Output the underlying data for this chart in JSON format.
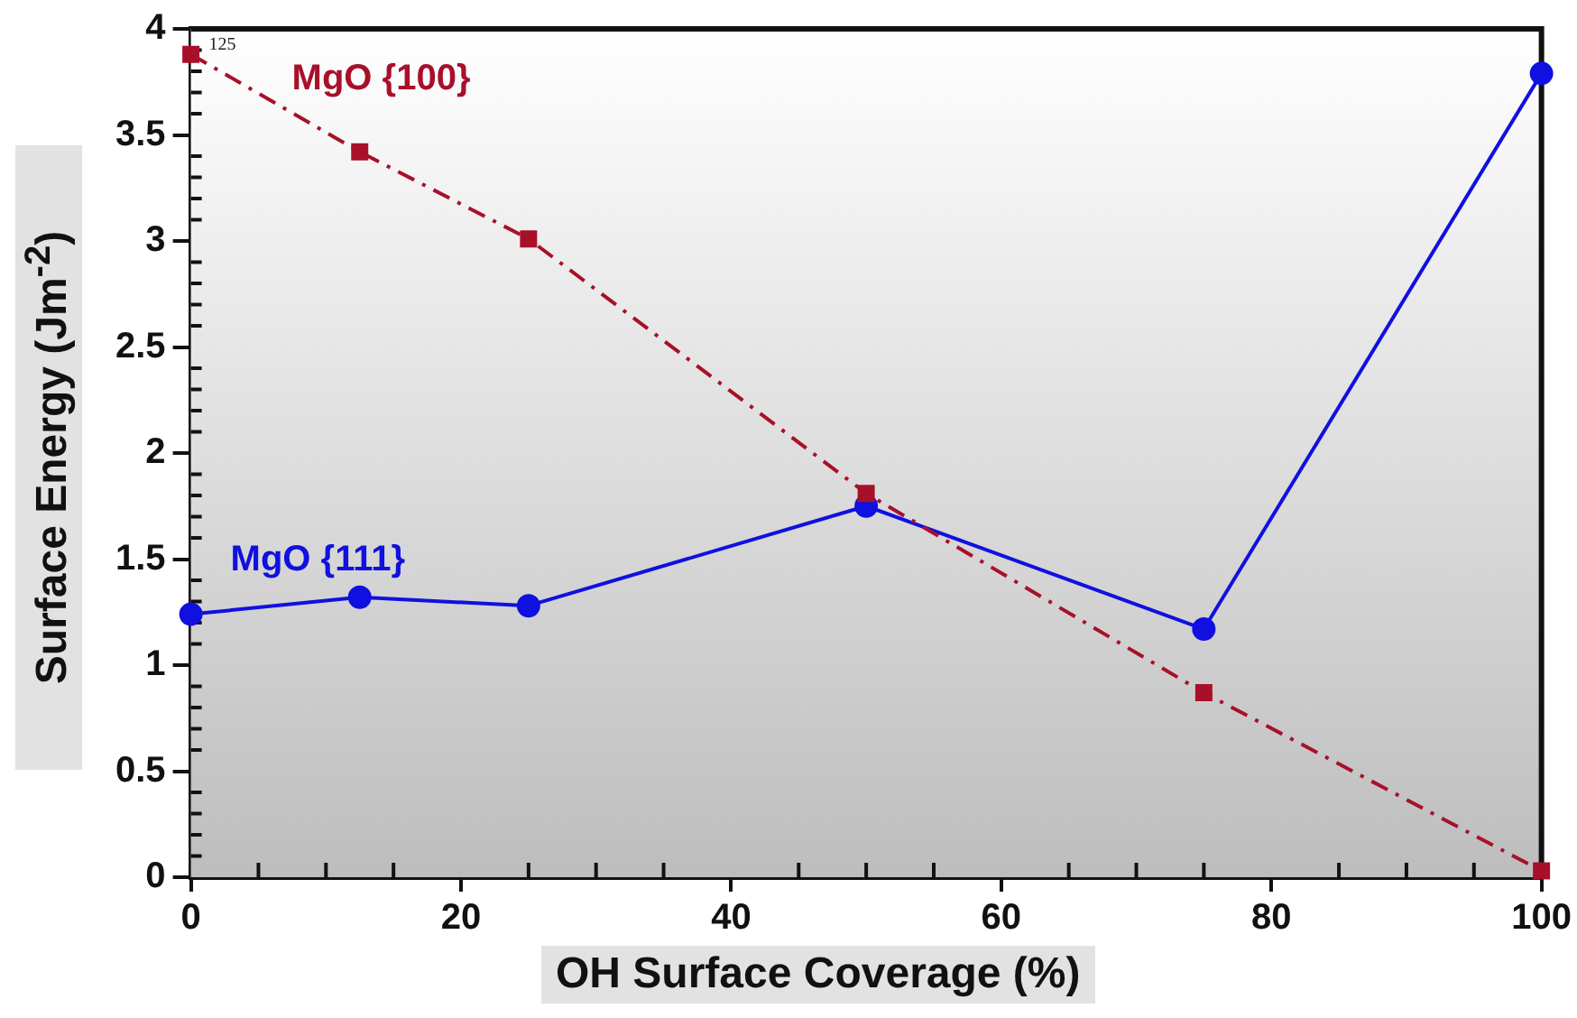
{
  "chart_data": {
    "type": "line",
    "xlabel": "OH Surface Coverage (%)",
    "ylabel": "Surface Energy (Jm$^{-2}$)",
    "x": [
      0,
      12.5,
      25,
      50,
      75,
      100
    ],
    "series": [
      {
        "name": "MgO {100}",
        "color": "#a8102a",
        "marker": "square",
        "line_style": "dashed",
        "values": [
          3.88,
          3.42,
          3.01,
          1.81,
          0.87,
          0.03
        ]
      },
      {
        "name": "MgO {111}",
        "color": "#1010e0",
        "marker": "circle",
        "line_style": "solid",
        "values": [
          1.24,
          1.32,
          1.28,
          1.75,
          1.17,
          3.79
        ]
      }
    ],
    "xlim": [
      0,
      100
    ],
    "xticks": [
      0,
      20,
      40,
      60,
      80,
      100
    ],
    "ylim": [
      0,
      4
    ],
    "yticks": [
      0,
      0.5,
      1,
      1.5,
      2,
      2.5,
      3,
      3.5,
      4
    ],
    "grid": false,
    "legend": false,
    "annotations": [
      {
        "text": "125",
        "x": 0,
        "y": 3.88
      }
    ]
  }
}
